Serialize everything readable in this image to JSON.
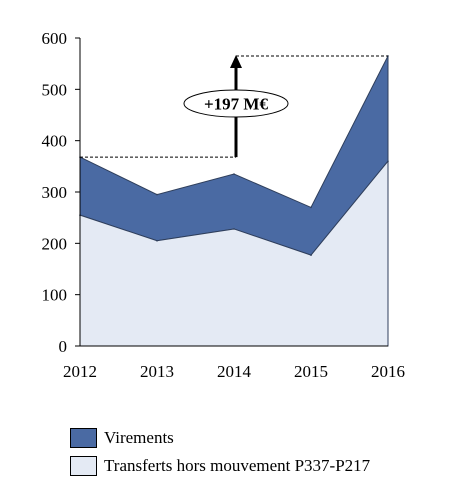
{
  "chart_data": {
    "type": "area",
    "stacked": true,
    "x": [
      "2012",
      "2013",
      "2014",
      "2015",
      "2016"
    ],
    "series": [
      {
        "name": "Transferts hors mouvement P337-P217",
        "values": [
          255,
          205,
          228,
          177,
          360
        ],
        "color": "#e4eaf4"
      },
      {
        "name": "Virements",
        "values": [
          113,
          90,
          107,
          93,
          205
        ],
        "color": "#4a6aa3"
      }
    ],
    "totals": [
      368,
      295,
      335,
      270,
      565
    ],
    "ylim": [
      0,
      600
    ],
    "yticks": [
      "0",
      "100",
      "200",
      "300",
      "400",
      "500",
      "600"
    ],
    "grid": false,
    "legend": "bottom-left",
    "annotation": {
      "text": "+197 M€",
      "from": 368,
      "to": 565
    }
  }
}
